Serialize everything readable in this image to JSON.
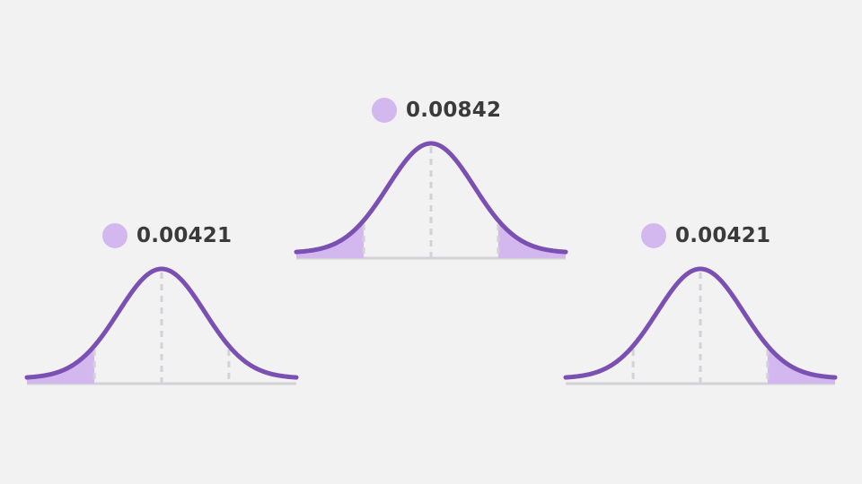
{
  "distributions": [
    {
      "id": "center",
      "value": "0.00842",
      "shaded_tails": [
        "left",
        "right"
      ]
    },
    {
      "id": "left",
      "value": "0.00421",
      "shaded_tails": [
        "left"
      ]
    },
    {
      "id": "right",
      "value": "0.00421",
      "shaded_tails": [
        "right"
      ]
    }
  ],
  "colors": {
    "curve": "#7b50b3",
    "tail_fill": "#d3b8ef",
    "marker_dot": "#d3b8ef",
    "guide": "#d2d2d8",
    "background": "#f2f2f2"
  }
}
